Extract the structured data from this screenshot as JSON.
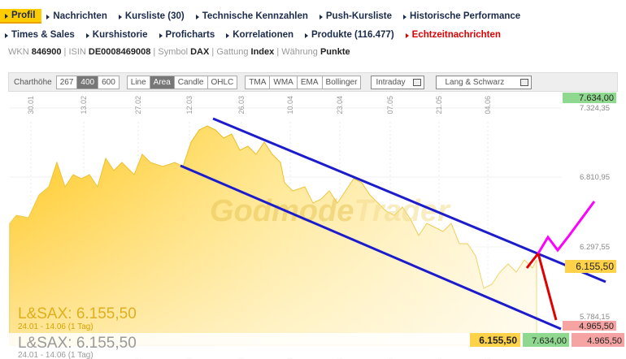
{
  "nav": {
    "row1": [
      "Profil",
      "Nachrichten",
      "Kursliste (30)",
      "Technische Kennzahlen",
      "Push-Kursliste",
      "Historische Performance"
    ],
    "row2": [
      "Times & Sales",
      "Kurshistorie",
      "Proficharts",
      "Korrelationen",
      "Produkte (116.477)",
      "Echtzeitnachrichten"
    ]
  },
  "info": [
    {
      "label": "WKN",
      "value": "846900"
    },
    {
      "label": "ISIN",
      "value": "DE0008469008"
    },
    {
      "label": "Symbol",
      "value": "DAX"
    },
    {
      "label": "Gattung",
      "value": "Index"
    },
    {
      "label": "Währung",
      "value": "Punkte"
    }
  ],
  "toolbar": {
    "height_label": "Charthöhe",
    "heights": [
      "267",
      "400",
      "600"
    ],
    "types": [
      "Line",
      "Area",
      "Candle",
      "OHLC"
    ],
    "indicators": [
      "TMA",
      "WMA",
      "EMA",
      "Bollinger"
    ],
    "interval": "Intraday",
    "source": "Lang & Schwarz"
  },
  "chart": {
    "watermark": [
      "Godmode",
      "Trader"
    ],
    "x_labels": [
      "30.01",
      "13.02",
      "27.02",
      "12.03",
      "26.03",
      "10.04",
      "23.04",
      "07.05",
      "21.05",
      "04.06"
    ],
    "y_labels": [
      "7.324,35",
      "6.810,95",
      "6.297,55",
      "5.784,15"
    ],
    "price_high": "7.634,00",
    "price_last": "6.155,50",
    "price_low": "4.965,50",
    "legend": {
      "title": "L&SAX: 6.155,50",
      "range": "24.01 - 14.06 (1 Tag)"
    }
  }
}
